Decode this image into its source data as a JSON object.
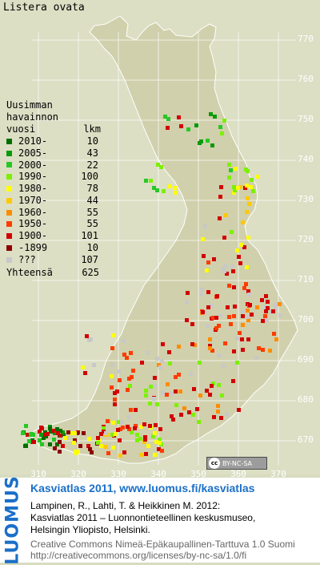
{
  "species": "Listera ovata",
  "colors": {
    "land": "#d0d0ac",
    "background": "#dcdfc4",
    "grid": "#ffffff",
    "brand": "#1a6fc8"
  },
  "legend": {
    "header_line1": "Uusimman",
    "header_line2": "havainnon",
    "header_year": "vuosi",
    "header_count": "lkm",
    "entries": [
      {
        "label": "2010-",
        "count": "10",
        "color": "#006e00"
      },
      {
        "label": "2005-",
        "count": "43",
        "color": "#0a9a0a"
      },
      {
        "label": "2000-",
        "count": "22",
        "color": "#26c826"
      },
      {
        "label": "1990-",
        "count": "100",
        "color": "#7cf000"
      },
      {
        "label": "1980-",
        "count": "78",
        "color": "#ffff00"
      },
      {
        "label": "1970-",
        "count": "44",
        "color": "#ffc800"
      },
      {
        "label": "1960-",
        "count": "55",
        "color": "#ff8c00"
      },
      {
        "label": "1950-",
        "count": "55",
        "color": "#ff3c00"
      },
      {
        "label": "1900-",
        "count": "101",
        "color": "#d20000"
      },
      {
        "label": "-1899",
        "count": "10",
        "color": "#8c0000"
      },
      {
        "label": "???",
        "count": "107",
        "color": "#c8c8c8"
      }
    ],
    "total_label": "Yhteensä",
    "total_count": "625"
  },
  "grid_labels": {
    "northing": [
      "770",
      "760",
      "750",
      "740",
      "730",
      "720",
      "710",
      "700",
      "690",
      "680",
      "670"
    ],
    "easting": [
      "310",
      "320",
      "330",
      "340",
      "350",
      "360",
      "370"
    ]
  },
  "cc_badge": {
    "symbol": "cc",
    "text": "BY-NC-SA"
  },
  "footer": {
    "logo": "LUOMUS",
    "title": "Kasviatlas 2011, www.luomus.fi/kasviatlas",
    "citation_line1": "Lampinen, R., Lahti, T. & Heikkinen M. 2012:",
    "citation_line2": "Kasviatlas 2011 – Luonnontieteellinen keskusmuseo,",
    "citation_line3": "Helsingin Yliopisto, Helsinki.",
    "license_line1": "Creative Commons Nimeä-Epäkaupallinen-Tarttuva 1.0 Suomi",
    "license_line2": "http://creativecommons.org/licenses/by-nc-sa/1.0/fi"
  }
}
